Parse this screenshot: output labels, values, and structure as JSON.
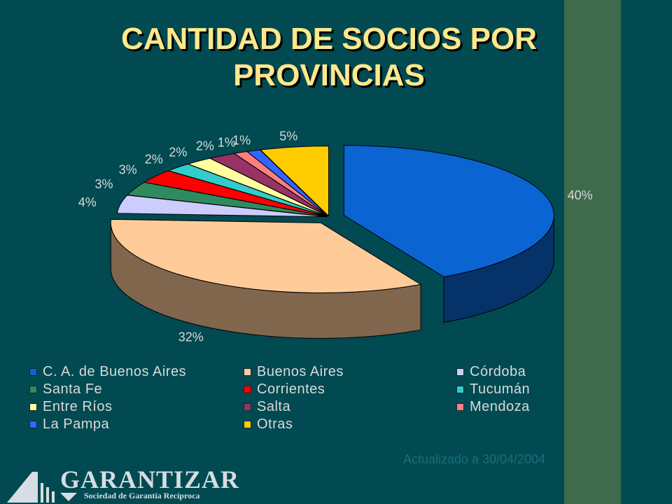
{
  "slide": {
    "title_line1": "CANTIDAD DE SOCIOS POR",
    "title_line2": "PROVINCIAS",
    "updated_note": "Actualizado a 30/04/2004",
    "logo_name": "GARANTIZAR",
    "logo_tagline": "Sociedad de Garantía Recíproca"
  },
  "colors": {
    "background": "#014a52",
    "stripe": "#3e6b4b",
    "title": "#ffe88c"
  },
  "chart_data": {
    "type": "pie",
    "title": "CANTIDAD DE SOCIOS POR PROVINCIAS",
    "categories": [
      "C. A. de Buenos Aires",
      "Buenos Aires",
      "Córdoba",
      "Santa Fe",
      "Corrientes",
      "Tucumán",
      "Entre Ríos",
      "Salta",
      "Mendoza",
      "La Pampa",
      "Otras"
    ],
    "values": [
      40,
      32,
      4,
      3,
      3,
      2,
      2,
      2,
      1,
      1,
      5
    ],
    "labels": [
      "40%",
      "32%",
      "4%",
      "3%",
      "3%",
      "2%",
      "2%",
      "2%",
      "1%",
      "1%",
      "5%"
    ],
    "colors": [
      "#0a64d2",
      "#ffcc99",
      "#ccccff",
      "#2f8a5f",
      "#ff0000",
      "#33cccc",
      "#ffffa0",
      "#993366",
      "#ff7f7f",
      "#3366ff",
      "#ffcc00"
    ],
    "legend_position": "bottom",
    "three_d": true
  }
}
